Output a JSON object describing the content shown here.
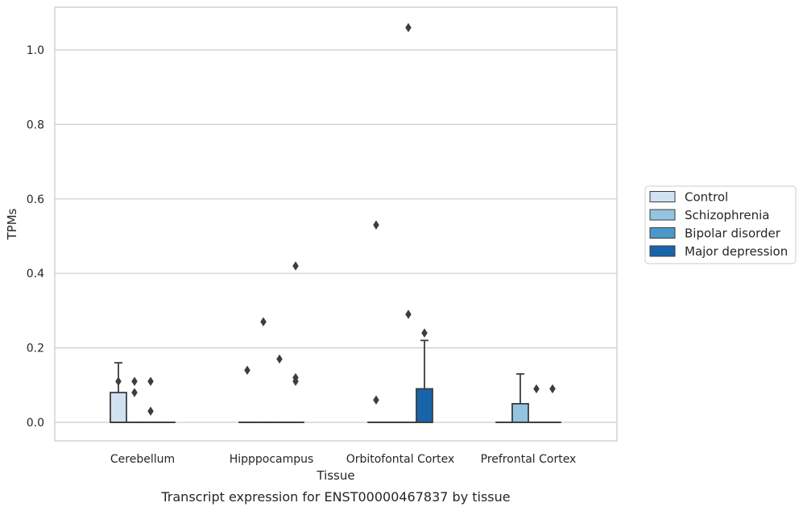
{
  "chart_data": {
    "type": "box",
    "title": "",
    "caption": "Transcript expression for ENST00000467837 by tissue",
    "xlabel": "Tissue",
    "ylabel": "TPMs",
    "ylim": [
      -0.05,
      1.12
    ],
    "yticks": [
      0.0,
      0.2,
      0.4,
      0.6,
      0.8,
      1.0
    ],
    "ytick_labels": [
      "0.0",
      "0.2",
      "0.4",
      "0.6",
      "0.8",
      "1.0"
    ],
    "grid": "horizontal",
    "legend_position": "right",
    "categories": [
      "Cerebellum",
      "Hipppocampus",
      "Orbitofontal Cortex",
      "Prefrontal Cortex"
    ],
    "series": [
      {
        "name": "Control",
        "color": "#d0e1f2",
        "boxes": [
          {
            "q1": 0.0,
            "median": 0.0,
            "q3": 0.08,
            "whisker_low": 0.0,
            "whisker_high": 0.16,
            "outliers": [
              0.11
            ]
          },
          {
            "q1": 0.0,
            "median": 0.0,
            "q3": 0.0,
            "whisker_low": 0.0,
            "whisker_high": 0.0,
            "outliers": [
              0.14
            ]
          },
          {
            "q1": 0.0,
            "median": 0.0,
            "q3": 0.0,
            "whisker_low": 0.0,
            "whisker_high": 0.0,
            "outliers": [
              0.53,
              0.06
            ]
          },
          {
            "q1": 0.0,
            "median": 0.0,
            "q3": 0.0,
            "whisker_low": 0.0,
            "whisker_high": 0.0,
            "outliers": []
          }
        ]
      },
      {
        "name": "Schizophrenia",
        "color": "#94c4df",
        "boxes": [
          {
            "q1": 0.0,
            "median": 0.0,
            "q3": 0.0,
            "whisker_low": 0.0,
            "whisker_high": 0.0,
            "outliers": [
              0.11,
              0.08
            ]
          },
          {
            "q1": 0.0,
            "median": 0.0,
            "q3": 0.0,
            "whisker_low": 0.0,
            "whisker_high": 0.0,
            "outliers": [
              0.27
            ]
          },
          {
            "q1": 0.0,
            "median": 0.0,
            "q3": 0.0,
            "whisker_low": 0.0,
            "whisker_high": 0.0,
            "outliers": []
          },
          {
            "q1": 0.0,
            "median": 0.0,
            "q3": 0.05,
            "whisker_low": 0.0,
            "whisker_high": 0.13,
            "outliers": []
          }
        ]
      },
      {
        "name": "Bipolar disorder",
        "color": "#4a98c9",
        "boxes": [
          {
            "q1": 0.0,
            "median": 0.0,
            "q3": 0.0,
            "whisker_low": 0.0,
            "whisker_high": 0.0,
            "outliers": [
              0.11,
              0.03
            ]
          },
          {
            "q1": 0.0,
            "median": 0.0,
            "q3": 0.0,
            "whisker_low": 0.0,
            "whisker_high": 0.0,
            "outliers": [
              0.17
            ]
          },
          {
            "q1": 0.0,
            "median": 0.0,
            "q3": 0.0,
            "whisker_low": 0.0,
            "whisker_high": 0.0,
            "outliers": [
              1.06,
              0.29
            ]
          },
          {
            "q1": 0.0,
            "median": 0.0,
            "q3": 0.0,
            "whisker_low": 0.0,
            "whisker_high": 0.0,
            "outliers": [
              0.09
            ]
          }
        ]
      },
      {
        "name": "Major depression",
        "color": "#1764ab",
        "boxes": [
          {
            "q1": 0.0,
            "median": 0.0,
            "q3": 0.0,
            "whisker_low": 0.0,
            "whisker_high": 0.0,
            "outliers": []
          },
          {
            "q1": 0.0,
            "median": 0.0,
            "q3": 0.0,
            "whisker_low": 0.0,
            "whisker_high": 0.0,
            "outliers": [
              0.42,
              0.12,
              0.11
            ]
          },
          {
            "q1": 0.0,
            "median": 0.0,
            "q3": 0.09,
            "whisker_low": 0.0,
            "whisker_high": 0.22,
            "outliers": [
              0.24
            ]
          },
          {
            "q1": 0.0,
            "median": 0.0,
            "q3": 0.0,
            "whisker_low": 0.0,
            "whisker_high": 0.0,
            "outliers": [
              0.09
            ]
          }
        ]
      }
    ]
  }
}
